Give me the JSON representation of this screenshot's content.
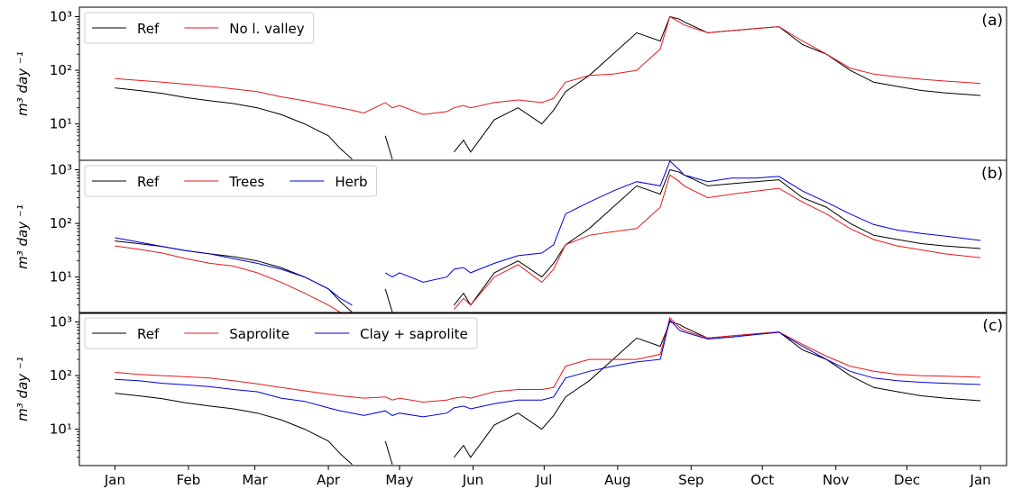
{
  "chart_data": [
    {
      "type": "line",
      "panel_label": "(a)",
      "ylabel": "m³ day ⁻¹",
      "log_y": true,
      "legend": "upper left",
      "xlim": [
        -15,
        376
      ],
      "ylim": [
        2.1,
        1500
      ],
      "yticks": [
        {
          "value": 10,
          "label": "10¹"
        },
        {
          "value": 100,
          "label": "10²"
        },
        {
          "value": 1000,
          "label": "10³"
        }
      ],
      "x": [
        0,
        10,
        20,
        30,
        40,
        50,
        60,
        70,
        80,
        90,
        95,
        100,
        105,
        114,
        117,
        120,
        130,
        140,
        143,
        147,
        150,
        160,
        170,
        180,
        185,
        190,
        200,
        210,
        220,
        230,
        234,
        238,
        240,
        250,
        260,
        270,
        280,
        290,
        300,
        310,
        320,
        330,
        340,
        350,
        365
      ],
      "series": [
        {
          "name": "Ref",
          "color": "#000000",
          "values": [
            47,
            42,
            37,
            31,
            27,
            24,
            20,
            15,
            10,
            6,
            3.5,
            2.2,
            null,
            6,
            2.2,
            null,
            null,
            null,
            3,
            5,
            3,
            12,
            20,
            10,
            18,
            40,
            80,
            200,
            500,
            350,
            1000,
            900,
            800,
            500,
            550,
            600,
            650,
            300,
            200,
            100,
            60,
            50,
            42,
            38,
            34
          ]
        },
        {
          "name": "No l. valley",
          "color": "#e41a1c",
          "values": [
            70,
            65,
            60,
            55,
            50,
            45,
            40,
            32,
            27,
            22,
            20,
            18,
            16,
            25,
            20,
            22,
            15,
            17,
            20,
            22,
            20,
            25,
            28,
            25,
            30,
            60,
            80,
            85,
            100,
            250,
            1000,
            800,
            700,
            500,
            550,
            600,
            650,
            350,
            200,
            110,
            85,
            75,
            68,
            63,
            57
          ]
        }
      ]
    },
    {
      "type": "line",
      "panel_label": "(b)",
      "ylabel": "m³ day ⁻¹",
      "log_y": true,
      "legend": "upper left",
      "xlim": [
        -15,
        376
      ],
      "ylim": [
        2.1,
        1500
      ],
      "yticks": [
        {
          "value": 10,
          "label": "10¹"
        },
        {
          "value": 100,
          "label": "10²"
        },
        {
          "value": 1000,
          "label": "10³"
        }
      ],
      "x": [
        0,
        10,
        20,
        30,
        40,
        50,
        60,
        70,
        80,
        90,
        95,
        100,
        105,
        114,
        117,
        120,
        130,
        140,
        143,
        147,
        150,
        160,
        170,
        180,
        185,
        190,
        200,
        210,
        220,
        230,
        234,
        238,
        240,
        250,
        260,
        270,
        280,
        290,
        300,
        310,
        320,
        330,
        340,
        350,
        365
      ],
      "series": [
        {
          "name": "Ref",
          "color": "#000000",
          "values": [
            47,
            42,
            37,
            31,
            27,
            24,
            20,
            15,
            10,
            6,
            3.5,
            2.2,
            null,
            6,
            2.2,
            null,
            null,
            null,
            3,
            5,
            3,
            12,
            20,
            10,
            18,
            40,
            80,
            200,
            500,
            350,
            1000,
            900,
            800,
            500,
            550,
            600,
            650,
            300,
            200,
            100,
            60,
            50,
            42,
            38,
            34
          ]
        },
        {
          "name": "Trees",
          "color": "#e41a1c",
          "values": [
            38,
            33,
            28,
            22,
            18,
            16,
            12,
            8,
            5,
            3,
            2.2,
            null,
            null,
            null,
            null,
            null,
            null,
            null,
            2.5,
            4,
            3,
            10,
            17,
            8,
            14,
            40,
            60,
            70,
            80,
            200,
            800,
            600,
            500,
            300,
            350,
            400,
            450,
            250,
            150,
            80,
            50,
            38,
            32,
            27,
            23
          ]
        },
        {
          "name": "Herb",
          "color": "#0000dd",
          "values": [
            54,
            45,
            37,
            31,
            27,
            22,
            18,
            14,
            10,
            6,
            4,
            3,
            null,
            12,
            10,
            12,
            8,
            10,
            14,
            15,
            12,
            18,
            25,
            28,
            40,
            150,
            250,
            400,
            600,
            500,
            1450,
            1000,
            800,
            600,
            700,
            700,
            750,
            400,
            250,
            150,
            95,
            75,
            65,
            58,
            48
          ]
        }
      ]
    },
    {
      "type": "line",
      "panel_label": "(c)",
      "ylabel": "m³ day ⁻¹",
      "log_y": true,
      "legend": "upper left",
      "xlim": [
        -15,
        376
      ],
      "ylim": [
        2.1,
        1500
      ],
      "yticks": [
        {
          "value": 10,
          "label": "10¹"
        },
        {
          "value": 100,
          "label": "10²"
        },
        {
          "value": 1000,
          "label": "10³"
        }
      ],
      "xticks": [
        {
          "value": 0,
          "label": "Jan"
        },
        {
          "value": 31,
          "label": "Feb"
        },
        {
          "value": 59,
          "label": "Mar"
        },
        {
          "value": 90,
          "label": "Apr"
        },
        {
          "value": 120,
          "label": "May"
        },
        {
          "value": 151,
          "label": "Jun"
        },
        {
          "value": 181,
          "label": "Jul"
        },
        {
          "value": 212,
          "label": "Aug"
        },
        {
          "value": 243,
          "label": "Sep"
        },
        {
          "value": 273,
          "label": "Oct"
        },
        {
          "value": 304,
          "label": "Nov"
        },
        {
          "value": 334,
          "label": "Dec"
        },
        {
          "value": 365,
          "label": "Jan"
        }
      ],
      "x": [
        0,
        10,
        20,
        30,
        40,
        50,
        60,
        70,
        80,
        90,
        95,
        100,
        105,
        114,
        117,
        120,
        130,
        140,
        143,
        147,
        150,
        160,
        170,
        180,
        185,
        190,
        200,
        210,
        220,
        230,
        234,
        238,
        240,
        250,
        260,
        270,
        280,
        290,
        300,
        310,
        320,
        330,
        340,
        350,
        365
      ],
      "series": [
        {
          "name": "Ref",
          "color": "#000000",
          "values": [
            47,
            42,
            37,
            31,
            27,
            24,
            20,
            15,
            10,
            6,
            3.5,
            2.2,
            null,
            6,
            2.2,
            null,
            null,
            null,
            3,
            5,
            3,
            12,
            20,
            10,
            18,
            40,
            80,
            200,
            500,
            350,
            1000,
            900,
            800,
            500,
            550,
            600,
            650,
            300,
            200,
            100,
            60,
            50,
            42,
            38,
            34
          ]
        },
        {
          "name": "Saprolite",
          "color": "#e41a1c",
          "values": [
            115,
            105,
            100,
            95,
            90,
            80,
            70,
            60,
            52,
            45,
            42,
            40,
            38,
            40,
            35,
            38,
            32,
            35,
            38,
            40,
            38,
            50,
            55,
            55,
            60,
            150,
            200,
            200,
            200,
            250,
            1200,
            800,
            700,
            500,
            550,
            600,
            650,
            380,
            230,
            150,
            120,
            105,
            100,
            97,
            93
          ]
        },
        {
          "name": "Clay + saprolite",
          "color": "#0000dd",
          "values": [
            85,
            80,
            72,
            67,
            62,
            55,
            50,
            38,
            33,
            25,
            22,
            20,
            18,
            22,
            18,
            20,
            17,
            20,
            25,
            27,
            24,
            30,
            35,
            35,
            40,
            90,
            120,
            150,
            180,
            200,
            1100,
            700,
            650,
            480,
            520,
            580,
            640,
            350,
            200,
            120,
            90,
            80,
            75,
            72,
            68
          ]
        }
      ]
    }
  ]
}
